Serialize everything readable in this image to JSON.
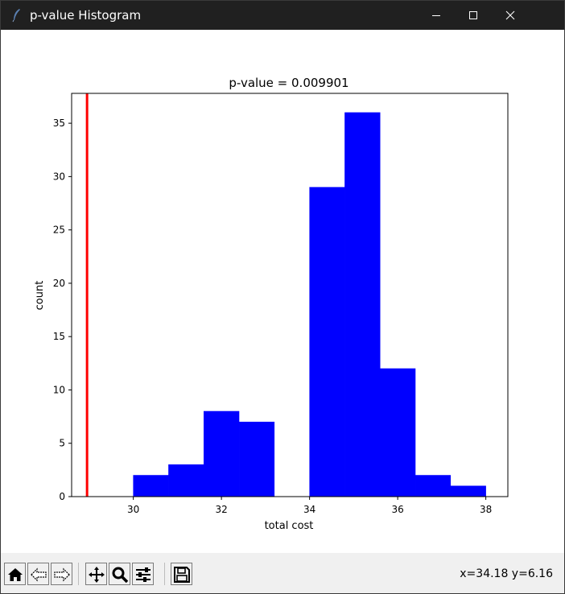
{
  "window": {
    "title": "p-value Histogram",
    "app_icon": "feather-icon",
    "controls": [
      "minimize-icon",
      "maximize-icon",
      "close-icon"
    ]
  },
  "toolbar": {
    "buttons": [
      "home-icon",
      "back-icon",
      "forward-icon",
      "pan-icon",
      "zoom-icon",
      "configure-subplots-icon",
      "save-icon"
    ],
    "coordinates": "x=34.18 y=6.16"
  },
  "chart_data": {
    "type": "bar",
    "title": "p-value = 0.009901",
    "xlabel": "total cost",
    "ylabel": "count",
    "xlim": [
      28.6,
      38.5
    ],
    "ylim": [
      0,
      37.8
    ],
    "xticks": [
      30,
      32,
      34,
      36,
      38
    ],
    "yticks": [
      0,
      5,
      10,
      15,
      20,
      25,
      30,
      35
    ],
    "bins": [
      {
        "x0": 30.0,
        "x1": 30.8,
        "count": 2
      },
      {
        "x0": 30.8,
        "x1": 31.6,
        "count": 3
      },
      {
        "x0": 31.6,
        "x1": 32.4,
        "count": 8
      },
      {
        "x0": 32.4,
        "x1": 33.2,
        "count": 7
      },
      {
        "x0": 33.2,
        "x1": 34.0,
        "count": 0
      },
      {
        "x0": 34.0,
        "x1": 34.8,
        "count": 29
      },
      {
        "x0": 34.8,
        "x1": 35.6,
        "count": 36
      },
      {
        "x0": 35.6,
        "x1": 36.4,
        "count": 12
      },
      {
        "x0": 36.4,
        "x1": 37.2,
        "count": 2
      },
      {
        "x0": 37.2,
        "x1": 38.0,
        "count": 1
      }
    ],
    "bar_color": "#0000ff",
    "vline": {
      "x": 28.95,
      "color": "#ff0000"
    },
    "grid": false,
    "legend": "none"
  }
}
